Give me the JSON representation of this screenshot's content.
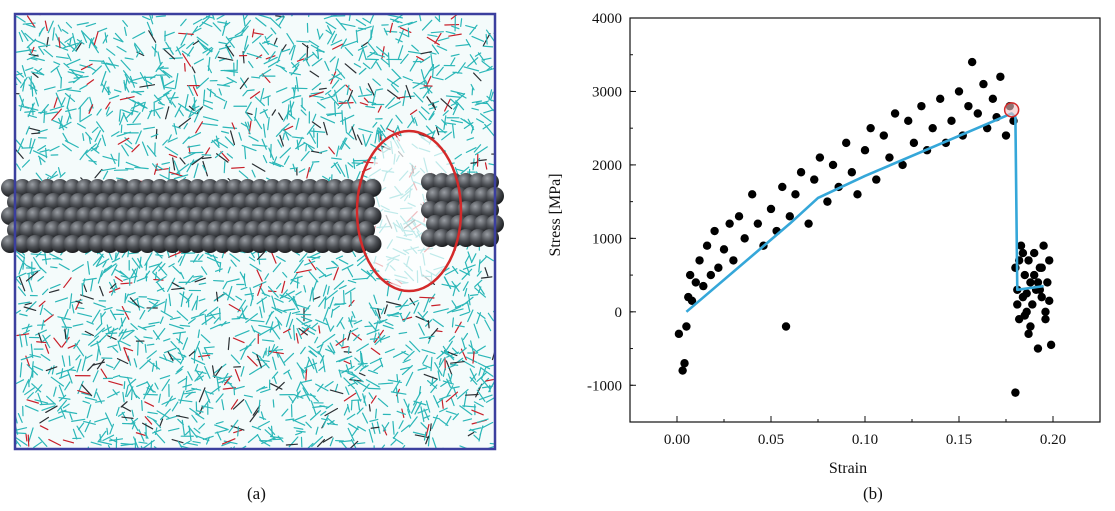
{
  "panels": {
    "left_label": "(a)",
    "right_label": "(b)"
  },
  "simulation": {
    "description_icon": "molecular-network",
    "colors": {
      "frame": "#3b3f9e",
      "network": "#2bb7b8",
      "network_accent": "#c8202a",
      "network_dark": "#2a2f33",
      "nanotube": "#4a4d52",
      "highlight": "#d42a2a"
    }
  },
  "chart_data": {
    "type": "scatter",
    "xlabel": "Strain",
    "ylabel": "Stress [MPa]",
    "xlim": [
      -0.025,
      0.225
    ],
    "ylim": [
      -1500,
      4000
    ],
    "xticks": [
      "0.00",
      "0.05",
      "0.10",
      "0.15",
      "0.20"
    ],
    "xtick_values": [
      0.0,
      0.05,
      0.1,
      0.15,
      0.2
    ],
    "yticks": [
      "-1000",
      "0",
      "1000",
      "2000",
      "3000",
      "4000"
    ],
    "ytick_values": [
      -1000,
      0,
      1000,
      2000,
      3000,
      4000
    ],
    "grid": false,
    "series": [
      {
        "kind": "points",
        "color": "#000000",
        "x": [
          0.001,
          0.003,
          0.004,
          0.005,
          0.006,
          0.007,
          0.008,
          0.01,
          0.012,
          0.014,
          0.016,
          0.018,
          0.02,
          0.022,
          0.025,
          0.028,
          0.03,
          0.033,
          0.036,
          0.04,
          0.043,
          0.046,
          0.05,
          0.053,
          0.056,
          0.058,
          0.06,
          0.063,
          0.066,
          0.07,
          0.073,
          0.076,
          0.08,
          0.083,
          0.086,
          0.09,
          0.093,
          0.096,
          0.1,
          0.103,
          0.106,
          0.11,
          0.113,
          0.116,
          0.12,
          0.123,
          0.126,
          0.13,
          0.133,
          0.136,
          0.14,
          0.143,
          0.146,
          0.15,
          0.152,
          0.155,
          0.157,
          0.16,
          0.163,
          0.165,
          0.168,
          0.17,
          0.172,
          0.175,
          0.177,
          0.179
        ],
        "y": [
          -300,
          -800,
          -700,
          -200,
          200,
          500,
          150,
          400,
          700,
          350,
          900,
          500,
          1100,
          600,
          850,
          1200,
          700,
          1300,
          1000,
          1600,
          1200,
          900,
          1400,
          1100,
          1700,
          -200,
          1300,
          1600,
          1900,
          1200,
          1800,
          2100,
          1500,
          2000,
          1700,
          2300,
          1900,
          1600,
          2200,
          2500,
          1800,
          2400,
          2100,
          2700,
          2000,
          2600,
          2300,
          2800,
          2200,
          2500,
          2900,
          2300,
          2600,
          3000,
          2400,
          2800,
          3400,
          2700,
          3100,
          2500,
          2900,
          2650,
          3200,
          2400,
          2800,
          2600
        ]
      },
      {
        "kind": "points",
        "color": "#000000",
        "x": [
          0.18,
          0.181,
          0.182,
          0.183,
          0.184,
          0.185,
          0.186,
          0.187,
          0.188,
          0.189,
          0.19,
          0.191,
          0.192,
          0.193,
          0.194,
          0.195,
          0.196,
          0.197,
          0.198,
          0.199,
          0.181,
          0.184,
          0.187,
          0.19,
          0.193,
          0.196,
          0.182,
          0.188,
          0.194,
          0.18,
          0.186,
          0.192,
          0.198,
          0.185
        ],
        "y": [
          600,
          300,
          -100,
          900,
          200,
          500,
          0,
          700,
          400,
          100,
          800,
          300,
          -500,
          600,
          200,
          900,
          -100,
          400,
          700,
          -450,
          100,
          800,
          -300,
          500,
          300,
          0,
          700,
          -200,
          600,
          -1100,
          250,
          400,
          150,
          -50
        ]
      },
      {
        "kind": "fit-line",
        "color": "#35a7d9",
        "x": [
          0.005,
          0.06,
          0.075,
          0.1,
          0.178,
          0.18,
          0.181,
          0.195
        ],
        "y": [
          0,
          1200,
          1550,
          1850,
          2700,
          2650,
          300,
          350
        ]
      }
    ],
    "annotations": [
      {
        "kind": "circle-marker",
        "x": 0.178,
        "y": 2750,
        "color": "#d42a2a"
      }
    ]
  }
}
